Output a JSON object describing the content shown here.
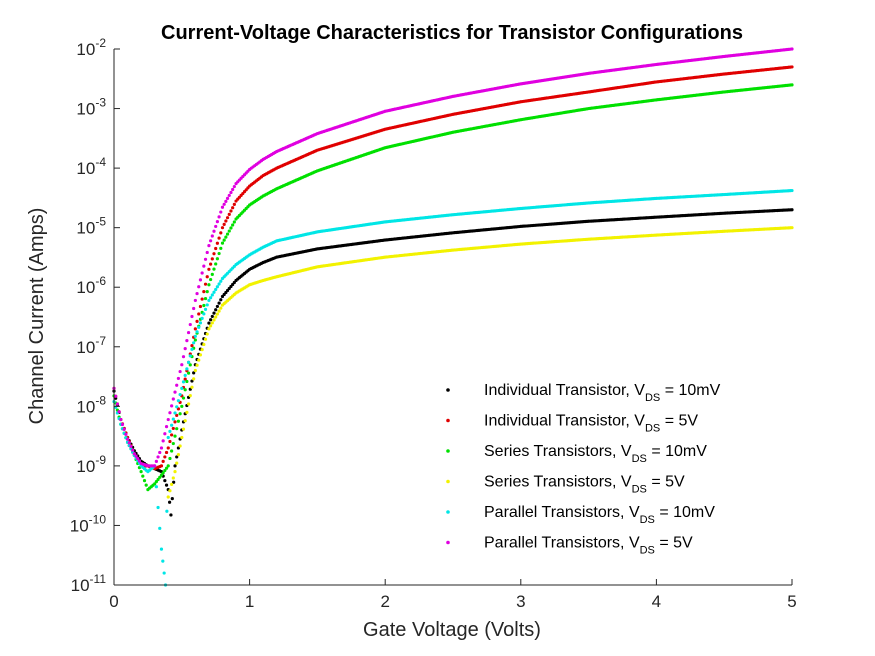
{
  "chart_data": {
    "type": "scatter",
    "title": "Current-Voltage Characteristics for Transistor Configurations",
    "xlabel": "Gate Voltage (Volts)",
    "ylabel": "Channel Current (Amps)",
    "xlim": [
      0,
      5
    ],
    "ylim": [
      1e-11,
      0.01
    ],
    "yscale": "log",
    "grid": false,
    "legend_position": "lower-right",
    "x_ticks": [
      "0",
      "1",
      "2",
      "3",
      "4",
      "5"
    ],
    "y_ticks": [
      {
        "base": "10",
        "exp": "-11"
      },
      {
        "base": "10",
        "exp": "-10"
      },
      {
        "base": "10",
        "exp": "-9"
      },
      {
        "base": "10",
        "exp": "-8"
      },
      {
        "base": "10",
        "exp": "-7"
      },
      {
        "base": "10",
        "exp": "-6"
      },
      {
        "base": "10",
        "exp": "-5"
      },
      {
        "base": "10",
        "exp": "-4"
      },
      {
        "base": "10",
        "exp": "-3"
      },
      {
        "base": "10",
        "exp": "-2"
      }
    ],
    "series": [
      {
        "label_main": "Individual Transistor, V",
        "label_sub": "DS",
        "label_tail": " = 10mV",
        "color": "#000000",
        "points": [
          [
            0.0,
            1.8e-08
          ],
          [
            0.05,
            6e-09
          ],
          [
            0.1,
            3e-09
          ],
          [
            0.15,
            1.8e-09
          ],
          [
            0.2,
            1.2e-09
          ],
          [
            0.25,
            1e-09
          ],
          [
            0.3,
            9e-10
          ],
          [
            0.35,
            8e-10
          ],
          [
            0.4,
            4e-10
          ],
          [
            0.42,
            1.5e-10
          ],
          [
            0.45,
            1e-09
          ],
          [
            0.5,
            4e-09
          ],
          [
            0.6,
            5e-08
          ],
          [
            0.7,
            2.5e-07
          ],
          [
            0.8,
            7e-07
          ],
          [
            0.9,
            1.3e-06
          ],
          [
            1.0,
            2e-06
          ],
          [
            1.1,
            2.6e-06
          ],
          [
            1.2,
            3.2e-06
          ],
          [
            1.5,
            4.4e-06
          ],
          [
            2.0,
            6.2e-06
          ],
          [
            2.5,
            8.2e-06
          ],
          [
            3.0,
            1.05e-05
          ],
          [
            3.5,
            1.28e-05
          ],
          [
            4.0,
            1.5e-05
          ],
          [
            4.5,
            1.75e-05
          ],
          [
            5.0,
            2e-05
          ]
        ]
      },
      {
        "label_main": "Individual Transistor, V",
        "label_sub": "DS",
        "label_tail": " = 5V",
        "color": "#e00000",
        "points": [
          [
            0.0,
            2e-08
          ],
          [
            0.05,
            6e-09
          ],
          [
            0.1,
            3e-09
          ],
          [
            0.15,
            1.6e-09
          ],
          [
            0.2,
            1e-09
          ],
          [
            0.25,
            1e-09
          ],
          [
            0.3,
            9e-10
          ],
          [
            0.35,
            1e-09
          ],
          [
            0.4,
            2e-09
          ],
          [
            0.5,
            1.5e-08
          ],
          [
            0.6,
            2e-07
          ],
          [
            0.7,
            2e-06
          ],
          [
            0.8,
            1e-05
          ],
          [
            0.9,
            2.8e-05
          ],
          [
            1.0,
            5e-05
          ],
          [
            1.1,
            7.5e-05
          ],
          [
            1.2,
            0.0001
          ],
          [
            1.5,
            0.0002
          ],
          [
            2.0,
            0.00045
          ],
          [
            2.5,
            0.0008
          ],
          [
            3.0,
            0.0013
          ],
          [
            3.5,
            0.0019
          ],
          [
            4.0,
            0.0028
          ],
          [
            4.5,
            0.0038
          ],
          [
            5.0,
            0.005
          ]
        ]
      },
      {
        "label_main": "Series Transistors, V",
        "label_sub": "DS",
        "label_tail": " = 10mV",
        "color": "#00e000",
        "points": [
          [
            0.0,
            1.5e-08
          ],
          [
            0.05,
            5e-09
          ],
          [
            0.1,
            2.5e-09
          ],
          [
            0.15,
            1.5e-09
          ],
          [
            0.2,
            8e-10
          ],
          [
            0.25,
            4e-10
          ],
          [
            0.3,
            5e-10
          ],
          [
            0.35,
            7e-10
          ],
          [
            0.4,
            1e-09
          ],
          [
            0.5,
            1e-08
          ],
          [
            0.6,
            1.3e-07
          ],
          [
            0.7,
            1.1e-06
          ],
          [
            0.8,
            5.5e-06
          ],
          [
            0.9,
            1.4e-05
          ],
          [
            1.0,
            2.4e-05
          ],
          [
            1.1,
            3.4e-05
          ],
          [
            1.2,
            4.5e-05
          ],
          [
            1.5,
            9e-05
          ],
          [
            2.0,
            0.00022
          ],
          [
            2.5,
            0.0004
          ],
          [
            3.0,
            0.00065
          ],
          [
            3.5,
            0.001
          ],
          [
            4.0,
            0.0014
          ],
          [
            4.5,
            0.0019
          ],
          [
            5.0,
            0.0025
          ]
        ]
      },
      {
        "label_main": "Series Transistors, V",
        "label_sub": "DS",
        "label_tail": " = 5V",
        "color": "#f2f200",
        "points": [
          [
            0.4,
            3e-10
          ],
          [
            0.45,
            8e-10
          ],
          [
            0.5,
            3e-09
          ],
          [
            0.6,
            4e-08
          ],
          [
            0.7,
            2e-07
          ],
          [
            0.8,
            5e-07
          ],
          [
            0.9,
            8e-07
          ],
          [
            1.0,
            1.1e-06
          ],
          [
            1.1,
            1.3e-06
          ],
          [
            1.2,
            1.5e-06
          ],
          [
            1.5,
            2.2e-06
          ],
          [
            2.0,
            3.2e-06
          ],
          [
            2.5,
            4.2e-06
          ],
          [
            3.0,
            5.3e-06
          ],
          [
            3.5,
            6.4e-06
          ],
          [
            4.0,
            7.5e-06
          ],
          [
            4.5,
            8.7e-06
          ],
          [
            5.0,
            1e-05
          ]
        ]
      },
      {
        "label_main": "Parallel Transistors, V",
        "label_sub": "DS",
        "label_tail": " = 10mV",
        "color": "#00e6e6",
        "points": [
          [
            0.0,
            1.2e-08
          ],
          [
            0.05,
            5e-09
          ],
          [
            0.1,
            2.5e-09
          ],
          [
            0.15,
            1.5e-09
          ],
          [
            0.2,
            1e-09
          ],
          [
            0.25,
            8e-10
          ],
          [
            0.3,
            1e-09
          ],
          [
            0.35,
            4e-11
          ],
          [
            0.38,
            1e-11
          ],
          [
            0.4,
            3e-09
          ],
          [
            0.5,
            2e-08
          ],
          [
            0.6,
            1.5e-07
          ],
          [
            0.7,
            6e-07
          ],
          [
            0.8,
            1.4e-06
          ],
          [
            0.9,
            2.4e-06
          ],
          [
            1.0,
            3.5e-06
          ],
          [
            1.1,
            4.7e-06
          ],
          [
            1.2,
            6e-06
          ],
          [
            1.5,
            8.5e-06
          ],
          [
            2.0,
            1.25e-05
          ],
          [
            2.5,
            1.65e-05
          ],
          [
            3.0,
            2.1e-05
          ],
          [
            3.5,
            2.6e-05
          ],
          [
            4.0,
            3.1e-05
          ],
          [
            4.5,
            3.6e-05
          ],
          [
            5.0,
            4.2e-05
          ]
        ]
      },
      {
        "label_main": "Parallel Transistors, V",
        "label_sub": "DS",
        "label_tail": " = 5V",
        "color": "#e000e0",
        "points": [
          [
            0.0,
            2e-08
          ],
          [
            0.05,
            6e-09
          ],
          [
            0.1,
            2.8e-09
          ],
          [
            0.15,
            1.6e-09
          ],
          [
            0.2,
            1.1e-09
          ],
          [
            0.25,
            1e-09
          ],
          [
            0.3,
            1e-09
          ],
          [
            0.35,
            2e-09
          ],
          [
            0.4,
            6e-09
          ],
          [
            0.5,
            5e-08
          ],
          [
            0.6,
            6e-07
          ],
          [
            0.7,
            5e-06
          ],
          [
            0.8,
            2.2e-05
          ],
          [
            0.9,
            5.5e-05
          ],
          [
            1.0,
            9.5e-05
          ],
          [
            1.1,
            0.00014
          ],
          [
            1.2,
            0.00019
          ],
          [
            1.5,
            0.00038
          ],
          [
            2.0,
            0.0009
          ],
          [
            2.5,
            0.0016
          ],
          [
            3.0,
            0.0026
          ],
          [
            3.5,
            0.0039
          ],
          [
            4.0,
            0.0055
          ],
          [
            4.5,
            0.0075
          ],
          [
            5.0,
            0.01
          ]
        ]
      }
    ]
  }
}
